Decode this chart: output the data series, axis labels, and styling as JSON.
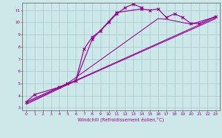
{
  "xlabel": "Windchill (Refroidissement éolien,°C)",
  "background_color": "#cce8e8",
  "grid_color": "#aacccc",
  "line_color": "#990099",
  "xlim": [
    -0.5,
    23.5
  ],
  "ylim": [
    2.8,
    11.6
  ],
  "xticks": [
    0,
    1,
    2,
    3,
    4,
    5,
    6,
    7,
    8,
    9,
    10,
    11,
    12,
    13,
    14,
    15,
    16,
    17,
    18,
    19,
    20,
    21,
    22,
    23
  ],
  "yticks": [
    3,
    4,
    5,
    6,
    7,
    8,
    9,
    10,
    11
  ],
  "line1_x": [
    0,
    1,
    4,
    5,
    6,
    7,
    8,
    9,
    10,
    11,
    12,
    13,
    14
  ],
  "line1_y": [
    3.5,
    4.1,
    4.7,
    5.0,
    5.2,
    7.8,
    8.8,
    9.3,
    10.0,
    10.7,
    11.2,
    11.5,
    11.2
  ],
  "line2_x": [
    5,
    6,
    8,
    11,
    14,
    15,
    16,
    17,
    18,
    19,
    20,
    21,
    23
  ],
  "line2_y": [
    5.0,
    5.2,
    8.6,
    10.8,
    11.1,
    11.0,
    11.1,
    10.4,
    10.7,
    10.4,
    9.9,
    9.9,
    10.5
  ],
  "line3_x": [
    0,
    5,
    16,
    17,
    20,
    23
  ],
  "line3_y": [
    3.5,
    5.0,
    10.3,
    10.25,
    9.85,
    10.45
  ],
  "line4_x": [
    0,
    5,
    23
  ],
  "line4_y": [
    3.4,
    4.95,
    10.4
  ],
  "line5_x": [
    0,
    5,
    23
  ],
  "line5_y": [
    3.3,
    4.9,
    10.3
  ]
}
